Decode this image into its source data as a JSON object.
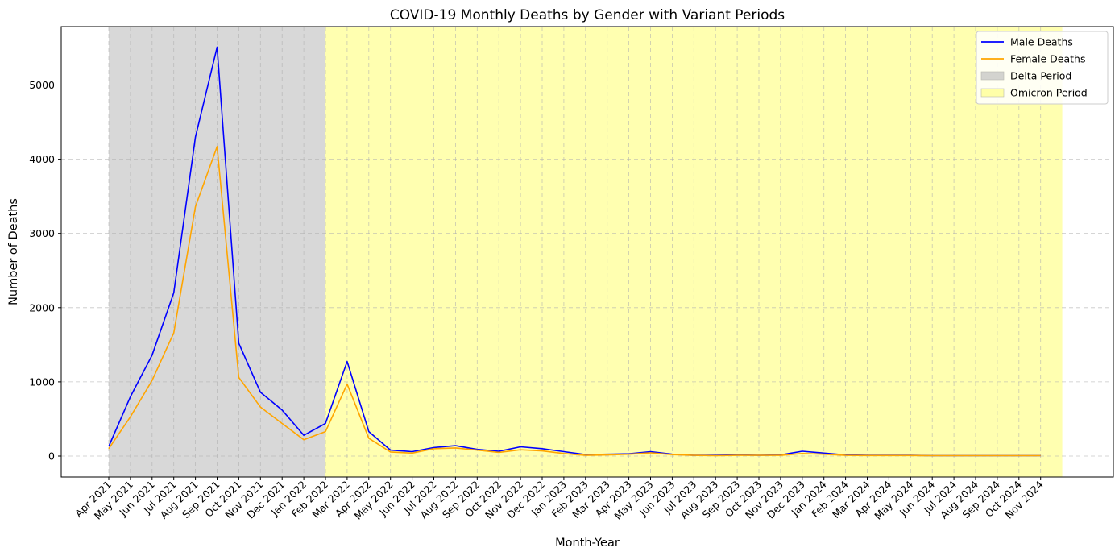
{
  "chart_data": {
    "type": "line",
    "title": "COVID-19 Monthly Deaths by Gender with Variant Periods",
    "xlabel": "Month-Year",
    "ylabel": "Number of Deaths",
    "categories": [
      "Apr 2021",
      "May 2021",
      "Jun 2021",
      "Jul 2021",
      "Aug 2021",
      "Sep 2021",
      "Oct 2021",
      "Nov 2021",
      "Dec 2021",
      "Jan 2022",
      "Feb 2022",
      "Mar 2022",
      "Apr 2022",
      "May 2022",
      "Jun 2022",
      "Jul 2022",
      "Aug 2022",
      "Sep 2022",
      "Oct 2022",
      "Nov 2022",
      "Dec 2022",
      "Jan 2023",
      "Feb 2023",
      "Mar 2023",
      "Apr 2023",
      "May 2023",
      "Jun 2023",
      "Jul 2023",
      "Aug 2023",
      "Sep 2023",
      "Oct 2023",
      "Nov 2023",
      "Dec 2023",
      "Jan 2024",
      "Feb 2024",
      "Mar 2024",
      "Apr 2024",
      "May 2024",
      "Jun 2024",
      "Jul 2024",
      "Aug 2024",
      "Sep 2024",
      "Oct 2024",
      "Nov 2024"
    ],
    "series": [
      {
        "name": "Male Deaths",
        "color": "#0000ff",
        "values": [
          130,
          800,
          1360,
          2200,
          4300,
          5510,
          1520,
          860,
          620,
          280,
          440,
          1275,
          330,
          80,
          60,
          115,
          140,
          90,
          65,
          125,
          100,
          60,
          20,
          25,
          30,
          60,
          25,
          10,
          10,
          15,
          10,
          15,
          65,
          40,
          15,
          10,
          10,
          10,
          5,
          5,
          5,
          5,
          5,
          5
        ]
      },
      {
        "name": "Female Deaths",
        "color": "#ffa500",
        "values": [
          100,
          530,
          1020,
          1660,
          3360,
          4170,
          1060,
          660,
          440,
          220,
          330,
          970,
          240,
          55,
          40,
          100,
          110,
          80,
          50,
          85,
          70,
          35,
          10,
          15,
          25,
          45,
          20,
          10,
          5,
          10,
          10,
          10,
          35,
          25,
          10,
          8,
          8,
          8,
          5,
          5,
          5,
          5,
          5,
          5
        ]
      }
    ],
    "spans": [
      {
        "name": "Delta Period",
        "start": "Apr 2021",
        "end": "Feb 2022",
        "color": "#d8d8d8",
        "legend_color": "#d3d3cf"
      },
      {
        "name": "Omicron Period",
        "start": "Feb 2022",
        "end_offset": 1,
        "color": "#ffffb0",
        "legend_color": "#ffffa8"
      }
    ],
    "y_ticks": [
      0,
      1000,
      2000,
      3000,
      4000,
      5000
    ],
    "ylim": [
      -290,
      5800
    ],
    "grid": true,
    "legend_position": "top-right"
  }
}
